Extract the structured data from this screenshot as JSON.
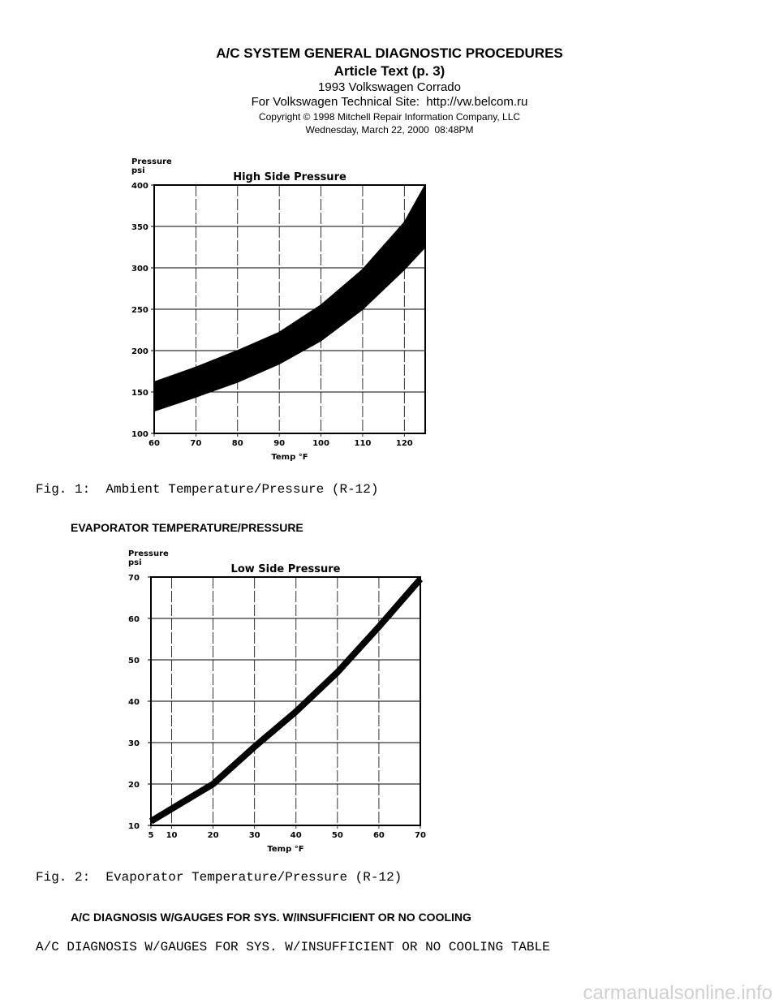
{
  "header": {
    "title": "A/C SYSTEM GENERAL DIAGNOSTIC PROCEDURES",
    "subtitle": "Article Text (p. 3)",
    "vehicle": "1993 Volkswagen Corrado",
    "site": "For Volkswagen Technical Site:  http://vw.belcom.ru",
    "copyright": "Copyright © 1998 Mitchell Repair Information Company, LLC",
    "date": "Wednesday, March 22, 2000  08:48PM"
  },
  "chart_data": [
    {
      "type": "range",
      "title": "High Side Pressure",
      "ylabel": "Pressure",
      "yunit": "psi",
      "xlabel": "Temp °F",
      "x": [
        60,
        70,
        80,
        90,
        100,
        110,
        120,
        125
      ],
      "series": [
        {
          "color": "#000000",
          "values": [
            162,
            180,
            200,
            222,
            255,
            298,
            355,
            400
          ]
        },
        {
          "color": "#000000",
          "values": [
            127,
            144,
            162,
            184,
            212,
            250,
            298,
            325
          ]
        }
      ],
      "xlim": [
        60,
        125
      ],
      "xticks": [
        60,
        70,
        80,
        90,
        100,
        110,
        120
      ],
      "ylim": [
        100,
        400
      ],
      "yticks": [
        100,
        150,
        200,
        250,
        300,
        350,
        400
      ],
      "grid": true
    },
    {
      "type": "line",
      "title": "Low Side Pressure",
      "ylabel": "Pressure",
      "yunit": "psi",
      "xlabel": "Temp °F",
      "x": [
        5,
        10,
        20,
        30,
        40,
        50,
        60,
        70
      ],
      "series": [
        {
          "color": "#000000",
          "values": [
            11,
            14,
            20,
            29,
            37.5,
            47,
            58,
            69.5
          ]
        }
      ],
      "xlim": [
        5,
        70
      ],
      "xticks": [
        5,
        10,
        20,
        30,
        40,
        50,
        60,
        70
      ],
      "ylim": [
        10,
        70
      ],
      "yticks": [
        10,
        20,
        30,
        40,
        50,
        60,
        70
      ],
      "grid": true
    }
  ],
  "captions": [
    "Fig. 1:  Ambient Temperature/Pressure (R-12)",
    "Fig. 2:  Evaporator Temperature/Pressure (R-12)"
  ],
  "headings": [
    "EVAPORATOR TEMPERATURE/PRESSURE",
    "A/C DIAGNOSIS W/GAUGES FOR SYS. W/INSUFFICIENT OR NO COOLING"
  ],
  "table_title": "A/C DIAGNOSIS W/GAUGES FOR SYS. W/INSUFFICIENT OR NO COOLING TABLE",
  "watermark": "carmanualsonline.info"
}
